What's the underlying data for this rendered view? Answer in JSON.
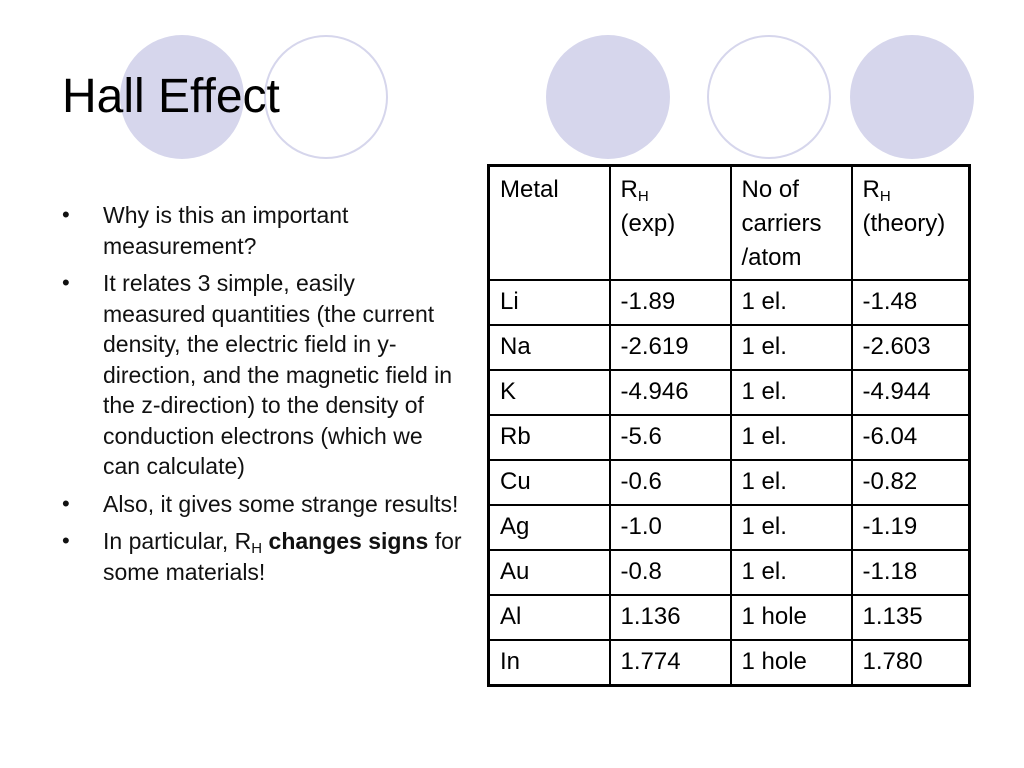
{
  "slide": {
    "title": "Hall Effect",
    "bullets": [
      {
        "text": "Why is this an important measurement?"
      },
      {
        "text": "It relates 3 simple, easily measured quantities (the current density, the electric field in y-direction, and the magnetic field in the z-direction) to the density of conduction electrons (which we can calculate)"
      },
      {
        "text": "Also, it gives some strange results!"
      },
      {
        "pre": "In particular, R",
        "sub": "H",
        "bold1": "changes",
        "bold2": "signs",
        "post": "for some materials!"
      }
    ],
    "bullet_glyph": "•"
  },
  "table": {
    "headers": {
      "metal": "Metal",
      "rh_exp_main": "R",
      "rh_exp_sub": "H",
      "rh_exp_suffix": "(exp)",
      "carriers": "No of carriers /atom",
      "rh_theory_main": "R",
      "rh_theory_sub": "H",
      "rh_theory_suffix": "(theory)"
    },
    "rows": [
      [
        "Li",
        "-1.89",
        "1 el.",
        "-1.48"
      ],
      [
        "Na",
        "-2.619",
        "1 el.",
        "-2.603"
      ],
      [
        "K",
        "-4.946",
        "1 el.",
        "-4.944"
      ],
      [
        "Rb",
        "-5.6",
        "1 el.",
        "-6.04"
      ],
      [
        "Cu",
        "-0.6",
        "1 el.",
        "-0.82"
      ],
      [
        "Ag",
        "-1.0",
        "1 el.",
        "-1.19"
      ],
      [
        "Au",
        "-0.8",
        "1 el.",
        "-1.18"
      ],
      [
        "Al",
        "1.136",
        "1 hole",
        "1.135"
      ],
      [
        "In",
        "1.774",
        "1 hole",
        "1.780"
      ]
    ]
  },
  "colors": {
    "decor_circle": "#d6d6ec"
  }
}
